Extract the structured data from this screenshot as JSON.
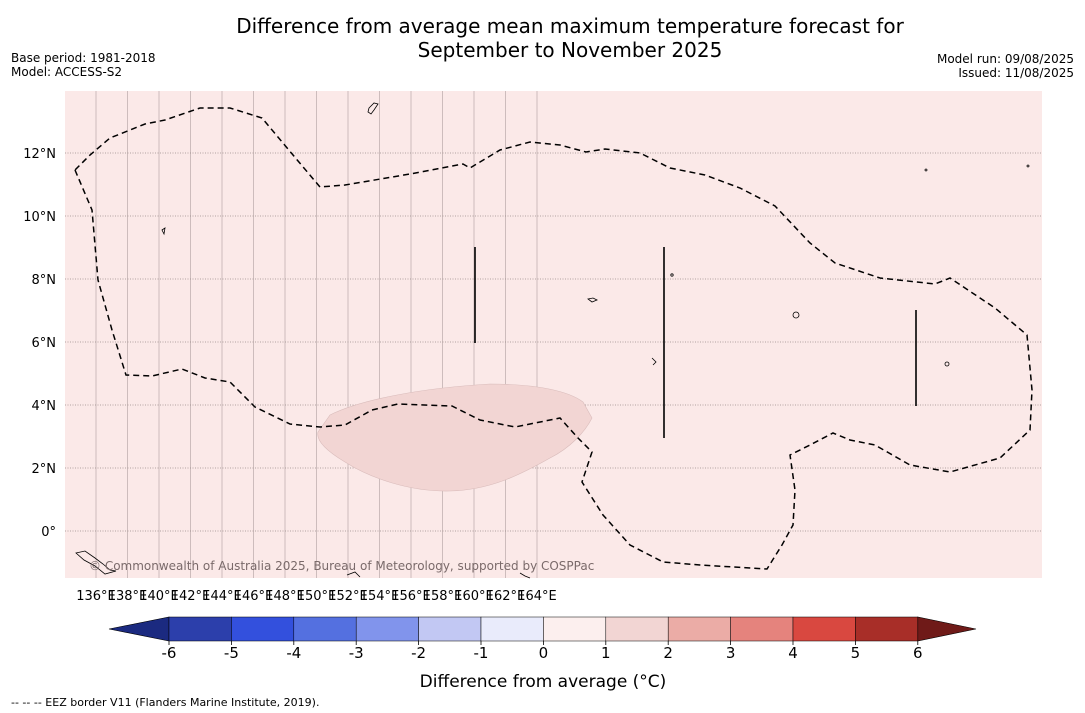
{
  "title_line1": "Difference from average mean maximum temperature forecast for",
  "title_line2": "September to November 2025",
  "meta_left": {
    "base_period": "Base period: 1981-2018",
    "model": "Model: ACCESS-S2"
  },
  "meta_right": {
    "model_run": "Model run: 09/08/2025",
    "issued": "Issued: 11/08/2025"
  },
  "map": {
    "lon_ticks": [
      "136°E",
      "138°E",
      "140°E",
      "142°E",
      "144°E",
      "146°E",
      "148°E",
      "150°E",
      "152°E",
      "154°E",
      "156°E",
      "158°E",
      "160°E",
      "162°E",
      "164°E"
    ],
    "lat_ticks": [
      "12°N",
      "10°N",
      "8°N",
      "6°N",
      "4°N",
      "2°N",
      "0°"
    ],
    "background_color": "#fbe9e8",
    "anomaly_patch_color": "#f2d5d3",
    "copyright": "© Commonwealth of Australia 2025, Bureau of Meteorology, supported by COSPPac"
  },
  "colorbar": {
    "title": "Difference from average (°C)",
    "labels": [
      "-6",
      "-5",
      "-4",
      "-3",
      "-2",
      "-1",
      "0",
      "1",
      "2",
      "3",
      "4",
      "5",
      "6"
    ],
    "colors": [
      "#1b2a80",
      "#2c3fab",
      "#3350dd",
      "#5470e0",
      "#8194ec",
      "#c2c8f3",
      "#e9ebfb",
      "#fcefee",
      "#f2d5d3",
      "#ebaca6",
      "#e5837d",
      "#d94840",
      "#a82e28",
      "#6f1a18"
    ]
  },
  "footer": "--  --  -- EEZ border V11 (Flanders Marine Institute, 2019)."
}
